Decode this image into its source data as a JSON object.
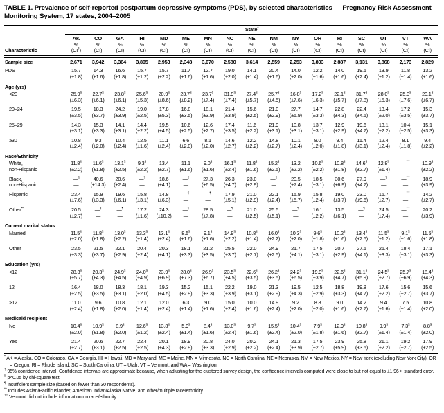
{
  "title": "TABLE 1. Prevalence of self-reported postpartum depressive symptoms (PDS), by selected characteristics — Pregnancy Risk Assessment Monitoring System, 17 states, 2004–2005",
  "header": {
    "characteristic": "Characteristic",
    "state_label": "State",
    "state_marker": "*",
    "pct": "%",
    "ci": "(CI)",
    "ci_first_marker": "†"
  },
  "states": [
    "AK",
    "CO",
    "GA",
    "HI",
    "MD",
    "ME",
    "MN",
    "NC",
    "NE",
    "NM",
    "NY",
    "OR",
    "RI",
    "SC",
    "UT",
    "VT",
    "WA"
  ],
  "rows": [
    {
      "kind": "single",
      "label": "Sample size",
      "cells": [
        "2,671",
        "3,942",
        "3,364",
        "3,805",
        "2,953",
        "2,348",
        "3,070",
        "2,580",
        "3,614",
        "2,559",
        "2,253",
        "3,803",
        "2,887",
        "3,131",
        "3,868",
        "2,173",
        "2,829"
      ]
    },
    {
      "kind": "pair",
      "label": "PDS",
      "cells": [
        "15.7|(±1.8)",
        "14.3|(±1.6)",
        "16.6|(±1.8)",
        "15.7|(±1.2)",
        "15.7|(±2.2)",
        "11.7|(±1.6)",
        "12.7|(±1.6)",
        "19.0|(±2.0)",
        "14.1|(±1.4)",
        "20.4|(±1.6)",
        "14.0|(±2.0)",
        "12.2|(±1.6)",
        "14.0|(±1.6)",
        "19.5|(±2.4)",
        "13.9|(±1.2)",
        "11.8|(±1.4)",
        "13.2|(±1.6)"
      ]
    },
    {
      "kind": "section",
      "label": "Age (yrs)"
    },
    {
      "kind": "pair",
      "label": "<20",
      "indent": true,
      "cells": [
        "25.9§|(±6.3)",
        "22.7§|(±6.1)",
        "23.8§|(±6.1)",
        "25.6§|(±5.3)",
        "20.9§|(±8.6)",
        "23.7§|(±8.2)",
        "23.7§|(±7.4)",
        "31.9§|(±7.4)",
        "27.4§|(±5.7)",
        "25.7§|(±4.5)",
        "16.8§|(±7.6)",
        "17.2§|(±6.3)",
        "22.1§|(±5.7)",
        "31.7§|(±7.8)",
        "28.0§|(±5.3)",
        "25.0§|(±7.6)",
        "20.1§|(±6.7)"
      ]
    },
    {
      "kind": "pair",
      "label": "20–24",
      "indent": true,
      "cells": [
        "19.5|(±3.5)",
        "18.3|(±3.7)",
        "24.2|(±3.9)",
        "19.0|(±2.5)",
        "17.8|(±5.3)",
        "16.8|(±3.5)",
        "18.1|(±3.9)",
        "21.4|(±3.9)",
        "15.6|(±2.5)",
        "21.0|(±2.9)",
        "27.7|(±5.9)",
        "14.7|(±3.3)",
        "22.8|(±4.3)",
        "22.4|(±4.5)",
        "13.4|(±2.0)",
        "17.2|(±3.5)",
        "15.3|(±3.7)"
      ]
    },
    {
      "kind": "pair",
      "label": "25–29",
      "indent": true,
      "cells": [
        "14.3|(±3.1)",
        "15.3|(±3.3)",
        "14.1|(±3.1)",
        "14.4|(±2.2)",
        "19.5|(±4.5)",
        "10.6|(±2.5)",
        "12.6|(±2.7)",
        "17.4|(±3.5)",
        "11.6|(±2.2)",
        "21.9|(±3.1)",
        "10.8|(±3.1)",
        "13.7|(±3.1)",
        "12.9|(±2.9)",
        "19.6|(±4.7)",
        "13.1|(±2.2)",
        "10.4|(±2.5)",
        "15.1|(±3.3)"
      ]
    },
    {
      "kind": "pair",
      "label": "≥30",
      "indent": true,
      "cells": [
        "10.8|(±2.4)",
        "9.3|(±2.0)",
        "10.4|(±2.4)",
        "12.5|(±1.6)",
        "11.1|(±2.4)",
        "6.6|(±2.0)",
        "8.1|(±2.0)",
        "14.6|(±2.7)",
        "12.2|(±2.2)",
        "14.8|(±2.7)",
        "10.1|(±2.4)",
        "8.0|(±2.0)",
        "9.4|(±1.8)",
        "11.4|(±3.1)",
        "12.4|(±2.4)",
        "8.1|(±1.8)",
        "9.4|(±2.2)"
      ]
    },
    {
      "kind": "section",
      "label": "Race/Ethnicity"
    },
    {
      "kind": "pair",
      "label": "White,",
      "label2": "non-Hispanic",
      "indent": true,
      "cells": [
        "11.8§|(±2.2)",
        "11.6§|(±1.8)",
        "13.1§|(±2.5)",
        "9.3§|(±2.2)",
        "13.4|(±2.7)",
        "11.1|(±1.6)",
        "9.0§|(±1.6)",
        "16.1§|(±2.4)",
        "11.8§|(±1.6)",
        "15.2§|(±2.5)",
        "13.2|(±2.2)",
        "10.6§|(±2.2)",
        "10.8§|(±1.8)",
        "14.6§|(±2.7)",
        "12.8§|(±1.4)",
        "—††|—",
        "10.9§|(±2.2)"
      ]
    },
    {
      "kind": "pair",
      "label": "Black,",
      "label2": "non-Hispanic",
      "indent": true,
      "cells": [
        "—¶|—",
        "40.6|(±14.3)",
        "20.6|(±2.4)",
        "—¶|—",
        "18.6|(±4.1)",
        "—¶|—",
        "27.3|(±6.5)",
        "26.3|(±4.7)",
        "23.0|(±2.9)",
        "—¶|—",
        "20.5|(±7.4)",
        "18.5|(±3.1)",
        "30.6|(±6.9)",
        "27.9|(±4.7)",
        "—¶|—",
        "—††|—",
        "18.9|(±3.9)"
      ]
    },
    {
      "kind": "pair",
      "label": "Hispanic",
      "indent": true,
      "cells": [
        "23.4|(±7.6)",
        "15.9|(±3.3)",
        "19.6|(±6.1)",
        "15.8|(±3.1)",
        "14.8|(±6.3)",
        "—¶|—",
        "—¶|—",
        "17.9|(±5.1)",
        "21.0|(±2.9)",
        "22.1|(±2.4)",
        "15.9|(±5.7)",
        "15.8|(±2.4)",
        "19.0|(±3.7)",
        "23.0|(±9.6)",
        "16.7|(±2.7)",
        "—††|—",
        "14.2|(±2.7)"
      ]
    },
    {
      "kind": "pair",
      "label": "Other**",
      "indent": true,
      "cells": [
        "20.5|(±2.7)",
        "—¶|—",
        "—¶|—",
        "17.2|(±1.6)",
        "24.3|(±10.2)",
        "—¶|—",
        "28.5|(±7.8)",
        "—¶|—",
        "21.0|(±2.5)",
        "25.5|(±5.1)",
        "—¶|—",
        "16.1|(±2.2)",
        "13.5|(±6.1)",
        "—¶|—",
        "24.5|(±7.4)",
        "—††|—",
        "20.2|(±3.9)"
      ]
    },
    {
      "kind": "section",
      "label": "Current marital status"
    },
    {
      "kind": "pair",
      "label": "Married",
      "indent": true,
      "cells": [
        "11.5§|(±2.0)",
        "11.8§|(±1.8)",
        "13.0§|(±2.2)",
        "13.3§|(±1.4)",
        "13.1§|(±2.4)",
        "8.5§|(±1.6)",
        "9.1§|(±1.6)",
        "14.9§|(±2.2)",
        "10.8§|(±1.4)",
        "16.0§|(±2.2)",
        "10.3§|(±2.0)",
        "9.6§|(±1.8)",
        "10.2§|(±1.6)",
        "13.4§|(±2.5)",
        "11.5§|(±1.2)",
        "9.1§|(±1.6)",
        "11.5§|(±1.8)"
      ]
    },
    {
      "kind": "pair",
      "label": "Other",
      "indent": true,
      "cells": [
        "23.5|(±3.3)",
        "21.5|(±3.7)",
        "22.1|(±2.9)",
        "20.4|(±2.4)",
        "20.3|(±4.1)",
        "18.1|(±3.3)",
        "21.2|(±3.5)",
        "25.5|(±3.7)",
        "22.0|(±2.7)",
        "24.9|(±2.5)",
        "21.7|(±4.1)",
        "17.5|(±3.1)",
        "20.7|(±2.9)",
        "27.5|(±4.1)",
        "26.4|(±3.3)",
        "18.4|(±3.1)",
        "17.1|(±3.3)"
      ]
    },
    {
      "kind": "section",
      "label": "Education (yrs)"
    },
    {
      "kind": "pair",
      "label": "<12",
      "indent": true,
      "cells": [
        "28.3§|(±5.7)",
        "20.3§|(±4.3)",
        "24.9§|(±4.5)",
        "24.0§|(±4.9)",
        "23.9§|(±6.9)",
        "28.0§|(±7.3)",
        "26.9§|(±6.7)",
        "23.5§|(±4.5)",
        "22.6§|(±3.5)",
        "26.2§|(±3.5)",
        "24.2§|(±6.5)",
        "19.9§|(±3.9)",
        "22.6§|(±4.7)",
        "31.1§|(±5.9)",
        "24.5§|(±2.7)",
        "25.7§|(±6.9)",
        "18.4§|(±4.3)"
      ]
    },
    {
      "kind": "pair",
      "label": "12",
      "indent": true,
      "cells": [
        "16.4|(±2.5)",
        "18.0|(±3.5)",
        "18.3|(±3.1)",
        "18.1|(±2.0)",
        "19.3|(±4.5)",
        "15.2|(±2.9)",
        "15.1|(±3.3)",
        "22.2|(±3.9)",
        "19.0|(±3.1)",
        "21.3|(±2.9)",
        "19.5|(±4.3)",
        "12.5|(±2.9)",
        "18.8|(±3.3)",
        "19.8|(±4.7)",
        "17.6|(±2.2)",
        "15.6|(±2.7)",
        "15.6|(±3.7)"
      ]
    },
    {
      "kind": "pair",
      "label": ">12",
      "indent": true,
      "cells": [
        "11.0|(±2.4)",
        "9.6|(±1.8)",
        "10.8|(±2.0)",
        "12.1|(±1.4)",
        "12.0|(±2.4)",
        "6.3|(±1.4)",
        "9.0|(±1.6)",
        "15.0|(±2.4)",
        "10.0|(±1.6)",
        "14.9|(±2.4)",
        "9.2|(±2.0)",
        "8.8|(±2.0)",
        "9.0|(±1.6)",
        "14.2|(±2.7)",
        "9.4|(±1.6)",
        "7.5|(±1.4)",
        "10.8|(±2.0)"
      ]
    },
    {
      "kind": "section",
      "label": "Medicaid recipient"
    },
    {
      "kind": "pair",
      "label": "No",
      "indent": true,
      "cells": [
        "10.4§|(±2.0)",
        "10.9§|(±1.8)",
        "8.9§|(±2.0)",
        "12.6§|(±1.2)",
        "13.8§|(±2.4)",
        "5.9§|(±1.4)",
        "8.4§|(±1.6)",
        "13.0§|(±2.4)",
        "9.7§|(±1.6)",
        "15.5§|(±2.4)",
        "10.4§|(±2.0)",
        "7.9§|(±1.8)",
        "12.9§|(±1.6)",
        "10.8§|(±2.7)",
        "9.9§|(±1.4)",
        "7.3§|(±1.4)",
        "8.8§|(±2.0)"
      ]
    },
    {
      "kind": "pair",
      "label": "Yes",
      "indent": true,
      "cells": [
        "21.4|(±2.7)",
        "20.6|(±3.1)",
        "22.7|(±2.5)",
        "22.4|(±2.5)",
        "20.1|(±4.3)",
        "18.9|(±2.9)",
        "20.8|(±3.3)",
        "24.0|(±2.9)",
        "20.2|(±2.2)",
        "24.1|(±2.4)",
        "21.3|(±3.9)",
        "17.5|(±2.7)",
        "23.9|(±5.9)",
        "25.8|(±3.5)",
        "21.1|(±2.2)",
        "19.2|(±2.7)",
        "17.9|(±2.5)"
      ]
    }
  ],
  "footnotes": [
    {
      "m": "*",
      "t": "AK = Alaska, CO = Colorado, GA = Georgia, HI = Hawaii, MD = Maryland, ME = Maine, MN = Minnesota, NC = North Carolina, NE = Nebraska, NM = New Mexico, NY = New York (excluding New York City), OR = Oregon, RI = Rhode Island, SC = South Carolina, UT = Utah, VT = Vermont, and WA = Washington."
    },
    {
      "m": "†",
      "t": "95% confidence interval. Confidence intervals are approximate because, when adjusting for the clustered survey design, the confidence intervals computed were close to but not equal to ±1.96 × standard error."
    },
    {
      "m": "§",
      "t": "p<0.05 by chi-square test."
    },
    {
      "m": "¶",
      "t": "Insufficient sample size (based on fewer than 30 respondents)."
    },
    {
      "m": "**",
      "t": "Includes Asian/Pacific Islander, American Indian/Alaska Native, and other/multiple race/ethnicity."
    },
    {
      "m": "††",
      "t": "Vermont did not include information on race/ethnicity."
    }
  ]
}
